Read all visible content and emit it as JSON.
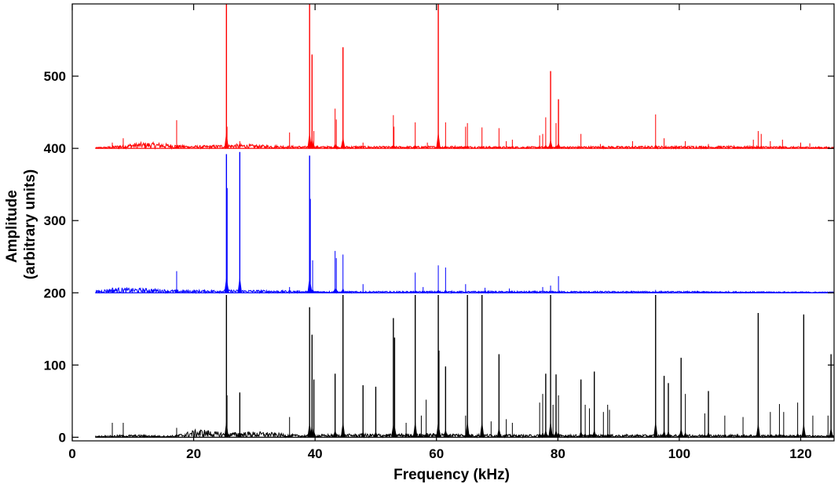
{
  "chart_data": {
    "type": "line",
    "title": "",
    "xlabel": "Frequency (kHz)",
    "ylabel": [
      "Amplitude",
      "(arbitrary units)"
    ],
    "xlim": [
      0,
      125.5
    ],
    "ylim": [
      -5,
      600
    ],
    "x_ticks": [
      0,
      20,
      40,
      60,
      80,
      100,
      120
    ],
    "y_ticks": [
      0,
      100,
      200,
      300,
      400,
      500
    ],
    "grid": false,
    "legend": "none",
    "series": [
      {
        "color": "#ff0000",
        "baseline": 400,
        "x_start": 3.8,
        "noise_bumps": [
          [
            12,
            5,
            4
          ],
          [
            21,
            10,
            1.5
          ],
          [
            27,
            4,
            1.5
          ],
          [
            33,
            6,
            1.5
          ],
          [
            45,
            8,
            1.2
          ],
          [
            60,
            10,
            1.0
          ],
          [
            85,
            25,
            1.0
          ],
          [
            110,
            20,
            1.0
          ]
        ],
        "peaks": [
          [
            6.6,
            8
          ],
          [
            8.4,
            14
          ],
          [
            17.2,
            39
          ],
          [
            25.4,
            200
          ],
          [
            25.5,
            30
          ],
          [
            27.6,
            10
          ],
          [
            35.8,
            22
          ],
          [
            39.1,
            200
          ],
          [
            39.5,
            130
          ],
          [
            39.8,
            24
          ],
          [
            43.3,
            55
          ],
          [
            43.5,
            40
          ],
          [
            44.6,
            140
          ],
          [
            47.9,
            8
          ],
          [
            52.9,
            46
          ],
          [
            53.0,
            30
          ],
          [
            56.5,
            36
          ],
          [
            58.5,
            8
          ],
          [
            60.3,
            200
          ],
          [
            61.5,
            36
          ],
          [
            64.8,
            30
          ],
          [
            65.1,
            35
          ],
          [
            67.5,
            29
          ],
          [
            70.3,
            28
          ],
          [
            71.5,
            10
          ],
          [
            72.5,
            12
          ],
          [
            77.0,
            18
          ],
          [
            77.5,
            20
          ],
          [
            78.0,
            43
          ],
          [
            78.8,
            107
          ],
          [
            79.7,
            35
          ],
          [
            80.1,
            68
          ],
          [
            83.8,
            20
          ],
          [
            87.0,
            6
          ],
          [
            92.3,
            10
          ],
          [
            96.1,
            47
          ],
          [
            97.5,
            14
          ],
          [
            101.0,
            10
          ],
          [
            104.8,
            6
          ],
          [
            112.2,
            12
          ],
          [
            113.0,
            24
          ],
          [
            113.5,
            20
          ],
          [
            115.0,
            10
          ],
          [
            117.0,
            12
          ],
          [
            120.0,
            8
          ],
          [
            121.5,
            7
          ]
        ]
      },
      {
        "color": "#0000ff",
        "baseline": 200,
        "x_start": 3.8,
        "noise_bumps": [
          [
            7,
            3,
            3
          ],
          [
            12,
            4,
            2.5
          ],
          [
            21,
            10,
            1.2
          ],
          [
            30,
            10,
            1.0
          ],
          [
            60,
            30,
            0.8
          ],
          [
            100,
            25,
            0.6
          ]
        ],
        "peaks": [
          [
            6.6,
            7
          ],
          [
            17.2,
            30
          ],
          [
            25.4,
            192
          ],
          [
            25.5,
            145
          ],
          [
            27.6,
            195
          ],
          [
            35.8,
            8
          ],
          [
            39.1,
            190
          ],
          [
            39.2,
            130
          ],
          [
            39.6,
            45
          ],
          [
            43.3,
            58
          ],
          [
            43.5,
            48
          ],
          [
            44.6,
            53
          ],
          [
            47.9,
            12
          ],
          [
            56.5,
            28
          ],
          [
            57.8,
            8
          ],
          [
            60.3,
            38
          ],
          [
            61.5,
            35
          ],
          [
            64.8,
            12
          ],
          [
            68.0,
            7
          ],
          [
            72.0,
            6
          ],
          [
            77.5,
            8
          ],
          [
            78.8,
            10
          ],
          [
            80.1,
            23
          ],
          [
            96.1,
            4
          ]
        ]
      },
      {
        "color": "#000000",
        "baseline": 0,
        "x_start": 3.8,
        "noise_bumps": [
          [
            10,
            6,
            1.5
          ],
          [
            21,
            3,
            6
          ],
          [
            27,
            4,
            3
          ],
          [
            32,
            4,
            3
          ],
          [
            45,
            10,
            2
          ],
          [
            60,
            10,
            2
          ],
          [
            80,
            20,
            1.5
          ],
          [
            110,
            20,
            1.5
          ]
        ],
        "peaks": [
          [
            6.6,
            20
          ],
          [
            8.4,
            20
          ],
          [
            17.2,
            13
          ],
          [
            21.0,
            8
          ],
          [
            25.4,
            197
          ],
          [
            25.5,
            58
          ],
          [
            27.6,
            62
          ],
          [
            35.8,
            28
          ],
          [
            39.1,
            180
          ],
          [
            39.5,
            142
          ],
          [
            39.8,
            80
          ],
          [
            43.3,
            88
          ],
          [
            44.6,
            197
          ],
          [
            47.9,
            72
          ],
          [
            50.0,
            70
          ],
          [
            52.9,
            165
          ],
          [
            53.1,
            138
          ],
          [
            55.0,
            20
          ],
          [
            56.5,
            197
          ],
          [
            57.5,
            30
          ],
          [
            58.3,
            52
          ],
          [
            60.3,
            197
          ],
          [
            60.4,
            120
          ],
          [
            61.5,
            98
          ],
          [
            64.8,
            30
          ],
          [
            65.1,
            197
          ],
          [
            67.5,
            197
          ],
          [
            69.0,
            22
          ],
          [
            70.3,
            115
          ],
          [
            71.5,
            25
          ],
          [
            72.5,
            20
          ],
          [
            77.0,
            48
          ],
          [
            77.5,
            60
          ],
          [
            78.0,
            88
          ],
          [
            78.8,
            197
          ],
          [
            79.2,
            45
          ],
          [
            79.7,
            87
          ],
          [
            80.1,
            58
          ],
          [
            83.8,
            80
          ],
          [
            84.5,
            45
          ],
          [
            85.2,
            40
          ],
          [
            86.0,
            91
          ],
          [
            87.5,
            35
          ],
          [
            88.2,
            45
          ],
          [
            88.5,
            38
          ],
          [
            96.1,
            197
          ],
          [
            97.5,
            85
          ],
          [
            98.2,
            75
          ],
          [
            100.3,
            110
          ],
          [
            101.0,
            60
          ],
          [
            104.2,
            33
          ],
          [
            104.8,
            64
          ],
          [
            107.5,
            30
          ],
          [
            110.5,
            28
          ],
          [
            113.0,
            172
          ],
          [
            115.0,
            35
          ],
          [
            116.5,
            46
          ],
          [
            117.2,
            35
          ],
          [
            119.5,
            48
          ],
          [
            120.5,
            170
          ],
          [
            122.0,
            30
          ],
          [
            124.5,
            30
          ],
          [
            125.0,
            115
          ]
        ]
      }
    ]
  }
}
